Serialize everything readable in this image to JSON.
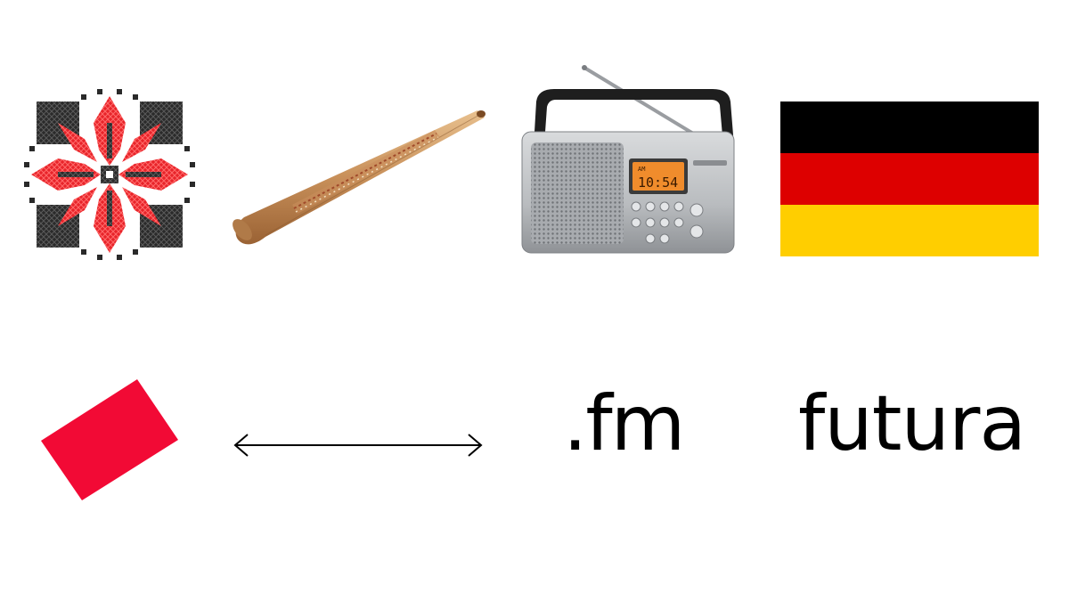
{
  "icons": {
    "embroidery": "cross-stitch-star-motif-icon",
    "didgeridoo": "didgeridoo-icon",
    "radio": "portable-radio-icon",
    "flag": "german-flag-icon",
    "card": "red-card-icon",
    "arrow": "double-arrow-icon"
  },
  "radio": {
    "display_time": "10:54",
    "display_band": "AM"
  },
  "colors": {
    "stitch_red": "#e8242a",
    "stitch_black": "#262626",
    "flag_black": "#000000",
    "flag_red": "#dd0000",
    "flag_gold": "#ffce00",
    "card_red": "#f20a35",
    "radio_silver": "#b9bcbf",
    "radio_display": "#f08c2c"
  },
  "words": {
    "fm": ".fm",
    "futura": "futura"
  }
}
